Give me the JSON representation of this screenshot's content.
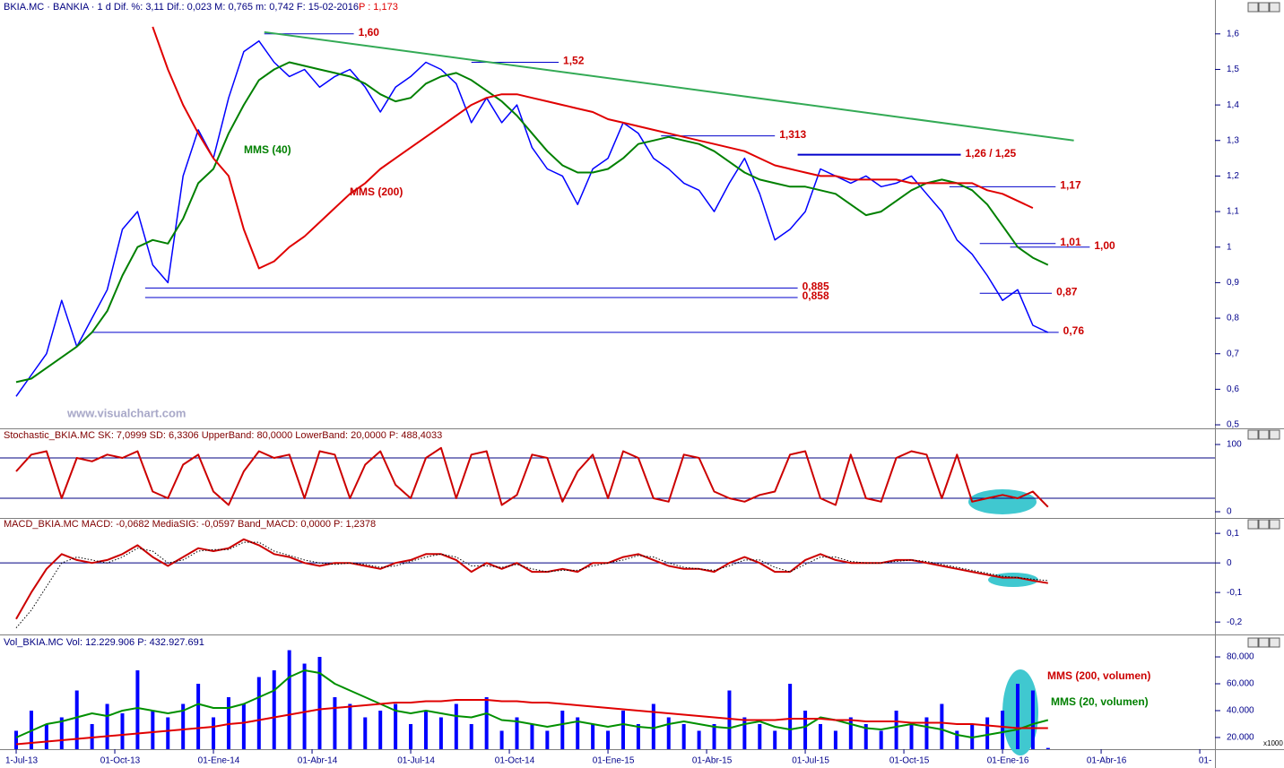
{
  "chart_data": [
    {
      "type": "line",
      "title": "BKIA.MC · BANKIA · 1 d Dif. %: 3,11 Dif.: 0,023 M: 0,765 m: 0,742 F: 15-02-2016",
      "title_p": "P : 1,173",
      "watermark": "www.visualchart.com",
      "x": [
        0,
        2,
        4,
        6,
        8,
        10,
        12,
        14,
        16,
        18,
        20,
        22,
        24,
        26,
        28,
        30,
        32,
        34,
        36,
        38,
        40,
        42,
        44,
        46,
        48,
        50,
        52,
        54,
        56,
        58,
        60,
        62,
        64,
        66,
        68,
        70,
        72,
        74,
        76,
        78,
        80,
        82,
        84,
        86,
        88,
        90,
        92,
        94,
        96,
        98,
        100,
        102,
        104,
        106,
        108,
        110,
        112,
        114,
        116,
        118,
        120,
        122,
        124,
        126,
        128,
        130,
        132,
        134,
        136
      ],
      "ylim": [
        0.49,
        1.66
      ],
      "yticks": [
        {
          "value": 0.5,
          "label": "0,5"
        },
        {
          "value": 0.6,
          "label": "0,6"
        },
        {
          "value": 0.7,
          "label": "0,7"
        },
        {
          "value": 0.8,
          "label": "0,8"
        },
        {
          "value": 0.9,
          "label": "0,9"
        },
        1,
        {
          "value": 1.1,
          "label": "1,1"
        },
        {
          "value": 1.2,
          "label": "1,2"
        },
        {
          "value": 1.3,
          "label": "1,3"
        },
        {
          "value": 1.4,
          "label": "1,4"
        },
        {
          "value": 1.5,
          "label": "1,5"
        },
        {
          "value": 1.6,
          "label": "1,6"
        }
      ],
      "series": [
        {
          "name": "BKIA.MC",
          "color": "#0000ff",
          "values": [
            0.58,
            0.64,
            0.7,
            0.85,
            0.72,
            0.8,
            0.88,
            1.05,
            1.1,
            0.95,
            0.9,
            1.2,
            1.33,
            1.25,
            1.42,
            1.55,
            1.58,
            1.52,
            1.48,
            1.5,
            1.45,
            1.48,
            1.5,
            1.45,
            1.38,
            1.45,
            1.48,
            1.52,
            1.5,
            1.46,
            1.35,
            1.42,
            1.35,
            1.4,
            1.28,
            1.22,
            1.2,
            1.12,
            1.22,
            1.25,
            1.35,
            1.32,
            1.25,
            1.22,
            1.18,
            1.16,
            1.1,
            1.18,
            1.25,
            1.15,
            1.02,
            1.05,
            1.1,
            1.22,
            1.2,
            1.18,
            1.2,
            1.17,
            1.18,
            1.2,
            1.15,
            1.1,
            1.02,
            0.98,
            0.92,
            0.85,
            0.88,
            0.78,
            0.76
          ]
        },
        {
          "name": "MMS (40)",
          "color": "#008000",
          "values": [
            0.62,
            0.63,
            0.66,
            0.69,
            0.72,
            0.76,
            0.82,
            0.92,
            1.0,
            1.02,
            1.01,
            1.08,
            1.18,
            1.22,
            1.32,
            1.4,
            1.47,
            1.5,
            1.52,
            1.51,
            1.5,
            1.49,
            1.48,
            1.46,
            1.43,
            1.41,
            1.42,
            1.46,
            1.48,
            1.49,
            1.47,
            1.44,
            1.41,
            1.37,
            1.32,
            1.27,
            1.23,
            1.21,
            1.21,
            1.22,
            1.25,
            1.29,
            1.3,
            1.31,
            1.3,
            1.29,
            1.27,
            1.24,
            1.21,
            1.19,
            1.18,
            1.17,
            1.17,
            1.16,
            1.15,
            1.12,
            1.09,
            1.1,
            1.13,
            1.16,
            1.18,
            1.19,
            1.18,
            1.16,
            1.12,
            1.06,
            1.0,
            0.97,
            0.95
          ]
        },
        {
          "name": "MMS (200)",
          "color": "#e00000",
          "values": [
            null,
            null,
            null,
            null,
            null,
            null,
            null,
            null,
            null,
            1.62,
            1.5,
            1.4,
            1.32,
            1.25,
            1.2,
            1.05,
            0.94,
            0.96,
            1.0,
            1.03,
            1.07,
            1.11,
            1.15,
            1.18,
            1.22,
            1.25,
            1.28,
            1.31,
            1.34,
            1.37,
            1.4,
            1.42,
            1.43,
            1.43,
            1.42,
            1.41,
            1.4,
            1.39,
            1.38,
            1.36,
            1.35,
            1.34,
            1.33,
            1.32,
            1.31,
            1.3,
            1.29,
            1.28,
            1.27,
            1.25,
            1.23,
            1.22,
            1.21,
            1.2,
            1.2,
            1.19,
            1.19,
            1.19,
            1.19,
            1.18,
            1.18,
            1.18,
            1.18,
            1.18,
            1.16,
            1.15,
            1.13,
            1.11,
            null
          ]
        }
      ],
      "levels": [
        {
          "value": 1.6,
          "label": "1,60",
          "from": 32.7,
          "to": 44.5
        },
        {
          "value": 1.52,
          "label": "1,52",
          "from": 60,
          "to": 71.5
        },
        {
          "value": 1.313,
          "label": "1,313",
          "from": 85,
          "to": 100
        },
        {
          "value": 1.26,
          "label": "1,26 / 1,25",
          "from": 103,
          "to": 124.5
        },
        {
          "value": 1.17,
          "label": "1,17",
          "from": 123,
          "to": 137
        },
        {
          "value": 1.01,
          "label": "1,01",
          "from": 127,
          "to": 137
        },
        {
          "value": 1.0,
          "label": "1,00",
          "from": 131,
          "to": 141.5
        },
        {
          "value": 0.885,
          "label": "0,885",
          "from": 17,
          "to": 103
        },
        {
          "value": 0.858,
          "label": "0,858",
          "from": 17,
          "to": 103
        },
        {
          "value": 0.87,
          "label": "0,87",
          "from": 127,
          "to": 136.5
        },
        {
          "value": 0.76,
          "label": "0,76",
          "from": 10,
          "to": 137.4
        }
      ],
      "trendline": {
        "color": "#33aa55",
        "from": [
          32.7,
          1.605
        ],
        "to": [
          139.4,
          1.3
        ]
      },
      "annotations": [
        {
          "text": "MMS (40)",
          "color": "#008000"
        },
        {
          "text": "MMS (200)",
          "color": "#cc0000"
        }
      ]
    },
    {
      "type": "line",
      "title": "Stochastic_BKIA.MC SK: 7,0999 SD: 6,3306 UpperBand: 80,0000 LowerBand: 20,0000 P: 488,4033",
      "ylim": [
        -9.3,
        124
      ],
      "yticks": [
        0,
        100
      ],
      "bands": [
        80,
        20
      ],
      "series": [
        {
          "name": "SK",
          "color": "#cc0000",
          "values": [
            60,
            85,
            90,
            20,
            80,
            75,
            85,
            80,
            90,
            30,
            20,
            70,
            85,
            30,
            10,
            60,
            90,
            80,
            85,
            20,
            90,
            85,
            20,
            70,
            90,
            40,
            20,
            80,
            95,
            20,
            85,
            90,
            10,
            25,
            85,
            80,
            15,
            60,
            85,
            20,
            90,
            80,
            20,
            15,
            85,
            80,
            30,
            20,
            15,
            25,
            30,
            85,
            90,
            20,
            10,
            85,
            20,
            15,
            80,
            90,
            85,
            20,
            85,
            15,
            20,
            25,
            20,
            30,
            7.1
          ]
        }
      ]
    },
    {
      "type": "line",
      "title": "MACD_BKIA.MC MACD: -0,0682 MediaSIG: -0,0597 Band_MACD: 0,0000 P: 1,2378",
      "ylim": [
        -0.242,
        0.152
      ],
      "yticks": [
        {
          "value": 0.1,
          "label": "0,1"
        },
        0,
        {
          "value": -0.1,
          "label": "-0,1"
        },
        {
          "value": -0.2,
          "label": "-0,2"
        }
      ],
      "bands": [
        0
      ],
      "series": [
        {
          "name": "MACD",
          "color": "#cc0000",
          "values": [
            -0.19,
            -0.1,
            -0.02,
            0.03,
            0.01,
            0.0,
            0.01,
            0.03,
            0.06,
            0.02,
            -0.01,
            0.02,
            0.05,
            0.04,
            0.05,
            0.08,
            0.06,
            0.03,
            0.02,
            0.0,
            -0.01,
            0.0,
            0.0,
            -0.01,
            -0.02,
            0.0,
            0.01,
            0.03,
            0.03,
            0.01,
            -0.03,
            0.0,
            -0.02,
            0.0,
            -0.03,
            -0.03,
            -0.02,
            -0.03,
            0.0,
            0.0,
            0.02,
            0.03,
            0.01,
            -0.01,
            -0.02,
            -0.02,
            -0.03,
            0.0,
            0.02,
            0.0,
            -0.03,
            -0.03,
            0.01,
            0.03,
            0.01,
            0.0,
            0.0,
            0.0,
            0.01,
            0.01,
            0.0,
            -0.01,
            -0.02,
            -0.03,
            -0.04,
            -0.05,
            -0.05,
            -0.06,
            -0.0682
          ]
        },
        {
          "name": "MediaSIG",
          "color": "#000000",
          "style": "dotted",
          "values": [
            -0.22,
            -0.16,
            -0.08,
            0.0,
            0.02,
            0.01,
            0.0,
            0.02,
            0.05,
            0.04,
            0.0,
            0.01,
            0.04,
            0.045,
            0.045,
            0.07,
            0.07,
            0.04,
            0.025,
            0.01,
            0.0,
            -0.005,
            0.0,
            -0.005,
            -0.015,
            -0.01,
            0.005,
            0.02,
            0.03,
            0.02,
            -0.01,
            -0.01,
            -0.015,
            -0.005,
            -0.02,
            -0.03,
            -0.025,
            -0.025,
            -0.01,
            0.0,
            0.01,
            0.025,
            0.02,
            0.0,
            -0.015,
            -0.02,
            -0.025,
            -0.01,
            0.01,
            0.01,
            -0.015,
            -0.03,
            -0.005,
            0.02,
            0.02,
            0.005,
            0.0,
            0.0,
            0.005,
            0.01,
            0.005,
            -0.005,
            -0.015,
            -0.025,
            -0.035,
            -0.045,
            -0.05,
            -0.055,
            -0.0597
          ]
        }
      ]
    },
    {
      "type": "bar",
      "title": "Vol_BKIA.MC Vol: 12.229.906 P: 432.927.691",
      "unit_label": "x1000",
      "ylim": [
        11.3,
        96.7
      ],
      "yticks": [
        {
          "value": 20,
          "label": "20.000"
        },
        {
          "value": 40,
          "label": "40.000"
        },
        {
          "value": 60,
          "label": "60.000"
        },
        {
          "value": 80,
          "label": "80.000"
        }
      ],
      "xlim": [
        -2.13,
        158
      ],
      "xticks": [
        {
          "value": 0,
          "label": "1-Jul-13"
        },
        {
          "value": 13,
          "label": "01-Oct-13"
        },
        {
          "value": 26,
          "label": "01-Ene-14"
        },
        {
          "value": 39,
          "label": "01-Abr-14"
        },
        {
          "value": 52,
          "label": "01-Jul-14"
        },
        {
          "value": 65,
          "label": "01-Oct-14"
        },
        {
          "value": 78,
          "label": "01-Ene-15"
        },
        {
          "value": 91,
          "label": "01-Abr-15"
        },
        {
          "value": 104,
          "label": "01-Jul-15"
        },
        {
          "value": 117,
          "label": "01-Oct-15"
        },
        {
          "value": 130,
          "label": "01-Ene-16"
        },
        {
          "value": 143,
          "label": "01-Abr-16"
        },
        {
          "value": 156,
          "label": "01-"
        }
      ],
      "series": [
        {
          "name": "Vol",
          "color": "#0000ff",
          "values": [
            25,
            40,
            30,
            35,
            55,
            30,
            45,
            38,
            70,
            40,
            35,
            45,
            60,
            35,
            50,
            45,
            65,
            70,
            85,
            75,
            80,
            50,
            45,
            35,
            40,
            45,
            30,
            40,
            35,
            45,
            30,
            50,
            25,
            35,
            30,
            25,
            40,
            35,
            30,
            25,
            40,
            30,
            45,
            35,
            30,
            25,
            30,
            55,
            35,
            30,
            25,
            60,
            40,
            30,
            25,
            35,
            30,
            25,
            40,
            30,
            35,
            45,
            25,
            30,
            35,
            40,
            60,
            55,
            12.229906
          ]
        },
        {
          "name": "MMS (20, volumen)",
          "type": "line",
          "color": "#009000",
          "values": [
            20,
            25,
            30,
            32,
            35,
            38,
            36,
            40,
            42,
            40,
            38,
            40,
            45,
            42,
            42,
            45,
            50,
            55,
            65,
            70,
            68,
            60,
            55,
            50,
            45,
            40,
            38,
            40,
            38,
            36,
            35,
            38,
            33,
            32,
            30,
            28,
            30,
            32,
            30,
            28,
            30,
            28,
            27,
            30,
            32,
            30,
            28,
            27,
            30,
            32,
            28,
            26,
            28,
            35,
            33,
            30,
            27,
            26,
            28,
            30,
            28,
            26,
            22,
            20,
            22,
            24,
            26,
            30,
            33
          ]
        },
        {
          "name": "MMS (200, volumen)",
          "type": "line",
          "color": "#e00000",
          "values": [
            15,
            16,
            17,
            18,
            19,
            20,
            21,
            22,
            23,
            24,
            25,
            26,
            27,
            28,
            30,
            31,
            33,
            35,
            37,
            39,
            41,
            42,
            43,
            44,
            45,
            46,
            46,
            47,
            47,
            48,
            48,
            48,
            47,
            47,
            46,
            46,
            45,
            44,
            43,
            42,
            41,
            40,
            39,
            38,
            37,
            36,
            35,
            34,
            33,
            33,
            33,
            34,
            34,
            34,
            33,
            33,
            32,
            32,
            32,
            31,
            31,
            31,
            30,
            30,
            29,
            28,
            27,
            27,
            27
          ]
        }
      ],
      "annotations": [
        {
          "text": "MMS (200, volumen)",
          "color": "#cc0000"
        },
        {
          "text": "MMS (20, volumen)",
          "color": "#008000"
        }
      ]
    }
  ]
}
